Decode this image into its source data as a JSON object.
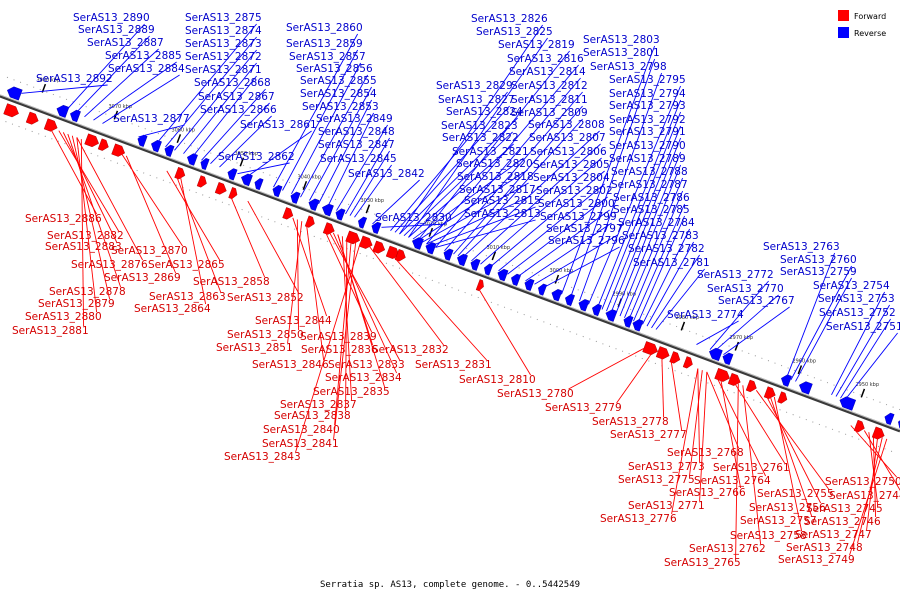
{
  "title": "Serratia sp. AS13, complete genome. - 0..5442549",
  "legend": [
    {
      "label": "Forward",
      "color": "#ff0000"
    },
    {
      "label": "Reverse",
      "color": "#0000ff"
    }
  ],
  "colors": {
    "forward": "#ff0000",
    "reverse": "#0000ff",
    "forward_label": "#d40000",
    "reverse_label": "#0000cc",
    "backbone": "#555555"
  },
  "scale": {
    "unit": "kbp",
    "ticks": [
      "3080 kbp",
      "3070 kbp",
      "3060 kbp",
      "3050 kbp",
      "3040 kbp",
      "3030 kbp",
      "3020 kbp",
      "3010 kbp",
      "3000 kbp",
      "2990 kbp",
      "2980 kbp",
      "2970 kbp",
      "2960 kbp",
      "2950 kbp"
    ]
  },
  "reverse_labels": [
    "SerAS13_2890",
    "SerAS13_2889",
    "SerAS13_2887",
    "SerAS13_2885",
    "SerAS13_2884",
    "SerAS13_2892",
    "SerAS13_2877",
    "SerAS13_2875",
    "SerAS13_2874",
    "SerAS13_2873",
    "SerAS13_2872",
    "SerAS13_2871",
    "SerAS13_2868",
    "SerAS13_2867",
    "SerAS13_2866",
    "SerAS13_2861",
    "SerAS13_2862",
    "SerAS13_2860",
    "SerAS13_2859",
    "SerAS13_2857",
    "SerAS13_2856",
    "SerAS13_2855",
    "SerAS13_2854",
    "SerAS13_2853",
    "SerAS13_2849",
    "SerAS13_2848",
    "SerAS13_2847",
    "SerAS13_2845",
    "SerAS13_2842",
    "SerAS13_2826",
    "SerAS13_2825",
    "SerAS13_2819",
    "SerAS13_2816",
    "SerAS13_2814",
    "SerAS13_2812",
    "SerAS13_2811",
    "SerAS13_2809",
    "SerAS13_2808",
    "SerAS13_2807",
    "SerAS13_2806",
    "SerAS13_2805",
    "SerAS13_2804",
    "SerAS13_2802",
    "SerAS13_2800",
    "SerAS13_2799",
    "SerAS13_2797",
    "SerAS13_2796",
    "SerAS13_2829",
    "SerAS13_2827",
    "SerAS13_2824",
    "SerAS13_2823",
    "SerAS13_2822",
    "SerAS13_2821",
    "SerAS13_2820",
    "SerAS13_2818",
    "SerAS13_2817",
    "SerAS13_2815",
    "SerAS13_2813",
    "SerAS13_2830",
    "SerAS13_2803",
    "SerAS13_2801",
    "SerAS13_2798",
    "SerAS13_2795",
    "SerAS13_2794",
    "SerAS13_2793",
    "SerAS13_2792",
    "SerAS13_2791",
    "SerAS13_2790",
    "SerAS13_2789",
    "SerAS13_2788",
    "SerAS13_2787",
    "SerAS13_2786",
    "SerAS13_2785",
    "SerAS13_2784",
    "SerAS13_2783",
    "SerAS13_2782",
    "SerAS13_2781",
    "SerAS13_2772",
    "SerAS13_2770",
    "SerAS13_2767",
    "SerAS13_2774",
    "SerAS13_2763",
    "SerAS13_2760",
    "SerAS13_2759",
    "SerAS13_2754",
    "SerAS13_2753",
    "SerAS13_2752",
    "SerAS13_2751"
  ],
  "forward_labels": [
    "SerAS13_2886",
    "SerAS13_2882",
    "SerAS13_2883",
    "SerAS13_2876",
    "SerAS13_2878",
    "SerAS13_2879",
    "SerAS13_2880",
    "SerAS13_2881",
    "SerAS13_2870",
    "SerAS13_2869",
    "SerAS13_2865",
    "SerAS13_2863",
    "SerAS13_2864",
    "SerAS13_2858",
    "SerAS13_2852",
    "SerAS13_2844",
    "SerAS13_2850",
    "SerAS13_2851",
    "SerAS13_2839",
    "SerAS13_2836",
    "SerAS13_2832",
    "SerAS13_2846",
    "SerAS13_2833",
    "SerAS13_2834",
    "SerAS13_2835",
    "SerAS13_2837",
    "SerAS13_2838",
    "SerAS13_2840",
    "SerAS13_2841",
    "SerAS13_2843",
    "SerAS13_2831",
    "SerAS13_2810",
    "SerAS13_2780",
    "SerAS13_2779",
    "SerAS13_2778",
    "SerAS13_2777",
    "SerAS13_2768",
    "SerAS13_2773",
    "SerAS13_2775",
    "SerAS13_2764",
    "SerAS13_2761",
    "SerAS13_2766",
    "SerAS13_2771",
    "SerAS13_2776",
    "SerAS13_2755",
    "SerAS13_2756",
    "SerAS13_2757",
    "SerAS13_2758",
    "SerAS13_2762",
    "SerAS13_2765",
    "SerAS13_2750",
    "SerAS13_2744",
    "SerAS13_2745",
    "SerAS13_2746",
    "SerAS13_2747",
    "SerAS13_2748",
    "SerAS13_2749"
  ]
}
